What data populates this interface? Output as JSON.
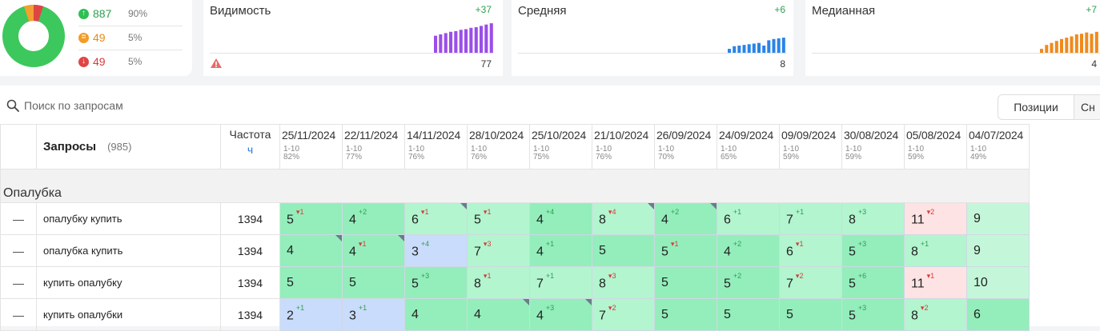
{
  "summary": {
    "colors": {
      "green": "#3cc85c",
      "orange": "#f4a030",
      "red": "#e04545"
    },
    "stats": [
      {
        "value": "887",
        "percent": "90%",
        "kind": "up"
      },
      {
        "value": "49",
        "percent": "5%",
        "kind": "same"
      },
      {
        "value": "49",
        "percent": "5%",
        "kind": "down"
      }
    ]
  },
  "metrics": [
    {
      "title": "Видимость",
      "delta": "+37",
      "value": "77",
      "color": "#9b4ee8",
      "warning_icon": "warning-triangle-icon"
    },
    {
      "title": "Средняя",
      "delta": "+6",
      "value": "8",
      "color": "#2a84e6"
    },
    {
      "title": "Медианная",
      "delta": "+7",
      "value": "4",
      "color": "#f08a1c"
    }
  ],
  "search": {
    "placeholder": "Поиск по запросам"
  },
  "view_toggle": {
    "active": "Позиции",
    "inactive": "Сн"
  },
  "table": {
    "queries_header": "Запросы",
    "queries_count": "(985)",
    "freq_header": "Частота",
    "freq_sub": "ч",
    "dates": [
      {
        "date": "25/11/2024",
        "range": "1-10",
        "pct": "82%"
      },
      {
        "date": "22/11/2024",
        "range": "1-10",
        "pct": "77%"
      },
      {
        "date": "14/11/2024",
        "range": "1-10",
        "pct": "76%"
      },
      {
        "date": "28/10/2024",
        "range": "1-10",
        "pct": "76%"
      },
      {
        "date": "25/10/2024",
        "range": "1-10",
        "pct": "75%"
      },
      {
        "date": "21/10/2024",
        "range": "1-10",
        "pct": "76%"
      },
      {
        "date": "26/09/2024",
        "range": "1-10",
        "pct": "70%"
      },
      {
        "date": "24/09/2024",
        "range": "1-10",
        "pct": "65%"
      },
      {
        "date": "09/09/2024",
        "range": "1-10",
        "pct": "59%"
      },
      {
        "date": "30/08/2024",
        "range": "1-10",
        "pct": "59%"
      },
      {
        "date": "05/08/2024",
        "range": "1-10",
        "pct": "59%"
      },
      {
        "date": "04/07/2024",
        "range": "1-10",
        "pct": "49%"
      }
    ],
    "group": "Опалубка",
    "rows": [
      {
        "dash": "—",
        "query": "опалубку купить",
        "freq": "1394",
        "cells": [
          {
            "v": "5",
            "d": "1",
            "dir": "dn",
            "bg": "g1"
          },
          {
            "v": "4",
            "d": "2",
            "dir": "up",
            "bg": "g1"
          },
          {
            "v": "6",
            "d": "1",
            "dir": "dn",
            "bg": "g2",
            "corner": true
          },
          {
            "v": "5",
            "d": "1",
            "dir": "dn",
            "bg": "g2"
          },
          {
            "v": "4",
            "d": "4",
            "dir": "up",
            "bg": "g1"
          },
          {
            "v": "8",
            "d": "4",
            "dir": "dn",
            "bg": "g2",
            "corner": true
          },
          {
            "v": "4",
            "d": "2",
            "dir": "up",
            "bg": "g1",
            "corner": true
          },
          {
            "v": "6",
            "d": "1",
            "dir": "up",
            "bg": "g2"
          },
          {
            "v": "7",
            "d": "1",
            "dir": "up",
            "bg": "g2"
          },
          {
            "v": "8",
            "d": "3",
            "dir": "up",
            "bg": "g2"
          },
          {
            "v": "11",
            "d": "2",
            "dir": "dn",
            "bg": "r"
          },
          {
            "v": "9",
            "bg": "g3"
          }
        ]
      },
      {
        "dash": "—",
        "query": "опалубка купить",
        "freq": "1394",
        "cells": [
          {
            "v": "4",
            "bg": "g1",
            "corner": true
          },
          {
            "v": "4",
            "d": "1",
            "dir": "dn",
            "bg": "g1",
            "corner": true
          },
          {
            "v": "3",
            "d": "4",
            "dir": "up",
            "bg": "b"
          },
          {
            "v": "7",
            "d": "3",
            "dir": "dn",
            "bg": "g2"
          },
          {
            "v": "4",
            "d": "1",
            "dir": "up",
            "bg": "g1"
          },
          {
            "v": "5",
            "bg": "g1"
          },
          {
            "v": "5",
            "d": "1",
            "dir": "dn",
            "bg": "g1"
          },
          {
            "v": "4",
            "d": "2",
            "dir": "up",
            "bg": "g1"
          },
          {
            "v": "6",
            "d": "1",
            "dir": "dn",
            "bg": "g2"
          },
          {
            "v": "5",
            "d": "3",
            "dir": "up",
            "bg": "g1"
          },
          {
            "v": "8",
            "d": "1",
            "dir": "up",
            "bg": "g2"
          },
          {
            "v": "9",
            "bg": "g3"
          }
        ]
      },
      {
        "dash": "—",
        "query": "купить опалубку",
        "freq": "1394",
        "cells": [
          {
            "v": "5",
            "bg": "g1"
          },
          {
            "v": "5",
            "bg": "g1"
          },
          {
            "v": "5",
            "d": "3",
            "dir": "up",
            "bg": "g1"
          },
          {
            "v": "8",
            "d": "1",
            "dir": "dn",
            "bg": "g2"
          },
          {
            "v": "7",
            "d": "1",
            "dir": "up",
            "bg": "g2"
          },
          {
            "v": "8",
            "d": "3",
            "dir": "dn",
            "bg": "g2"
          },
          {
            "v": "5",
            "bg": "g1"
          },
          {
            "v": "5",
            "d": "2",
            "dir": "up",
            "bg": "g1"
          },
          {
            "v": "7",
            "d": "2",
            "dir": "dn",
            "bg": "g2"
          },
          {
            "v": "5",
            "d": "6",
            "dir": "up",
            "bg": "g1"
          },
          {
            "v": "11",
            "d": "1",
            "dir": "dn",
            "bg": "r"
          },
          {
            "v": "10",
            "bg": "g3"
          }
        ]
      },
      {
        "dash": "—",
        "query": "купить опалубки",
        "freq": "1394",
        "cells": [
          {
            "v": "2",
            "d": "1",
            "dir": "up",
            "bg": "b"
          },
          {
            "v": "3",
            "d": "1",
            "dir": "up",
            "bg": "b"
          },
          {
            "v": "4",
            "bg": "g1"
          },
          {
            "v": "4",
            "bg": "g1",
            "corner": true
          },
          {
            "v": "4",
            "d": "3",
            "dir": "up",
            "bg": "g1",
            "corner": true
          },
          {
            "v": "7",
            "d": "2",
            "dir": "dn",
            "bg": "g2"
          },
          {
            "v": "5",
            "bg": "g1"
          },
          {
            "v": "5",
            "bg": "g1"
          },
          {
            "v": "5",
            "bg": "g1"
          },
          {
            "v": "5",
            "d": "3",
            "dir": "up",
            "bg": "g1"
          },
          {
            "v": "8",
            "d": "2",
            "dir": "dn",
            "bg": "g2"
          },
          {
            "v": "6",
            "bg": "g1"
          }
        ]
      }
    ]
  }
}
